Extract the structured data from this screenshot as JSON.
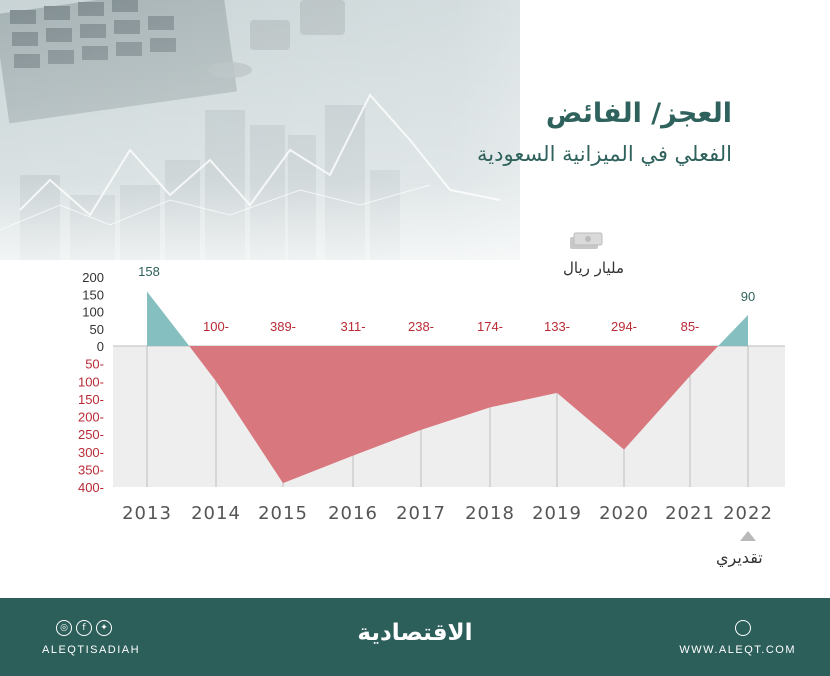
{
  "header": {
    "title": "العجز/ الفائض",
    "subtitle": "الفعلي في الميزانية السعودية"
  },
  "unit_label": "مليار ريال",
  "estimate_label": "تقديري",
  "footer": {
    "brand": "الاقتصادية",
    "handle": "ALEQTISADIAH",
    "website": "WWW.ALEQT.COM",
    "social_icons": [
      "instagram-icon",
      "facebook-icon",
      "twitter-icon"
    ],
    "site_icon": "globe-icon"
  },
  "colors": {
    "surplus": "#86bfc0",
    "deficit": "#d8777d",
    "deficit_label": "#b92b36",
    "surplus_label": "#2f625c",
    "panel": "#eeeeee",
    "footer": "#2c5e5a"
  },
  "chart_data": {
    "type": "area",
    "title": "العجز/ الفائض الفعلي في الميزانية السعودية",
    "unit": "مليار ريال",
    "x": [
      "2013",
      "2014",
      "2015",
      "2016",
      "2017",
      "2018",
      "2019",
      "2020",
      "2021",
      "2022"
    ],
    "values": [
      158,
      -100,
      -389,
      -311,
      -238,
      -174,
      -133,
      -294,
      -85,
      90
    ],
    "value_labels": [
      "158",
      "100-",
      "389-",
      "311-",
      "238-",
      "174-",
      "133-",
      "294-",
      "85-",
      "90"
    ],
    "yticks": [
      "200",
      "150",
      "100",
      "50",
      "0",
      "-50",
      "-100",
      "-150",
      "-200",
      "-250",
      "-300",
      "-350",
      "-400"
    ],
    "ylim": [
      -400,
      200
    ],
    "estimated_category": "2022",
    "grid": true
  }
}
